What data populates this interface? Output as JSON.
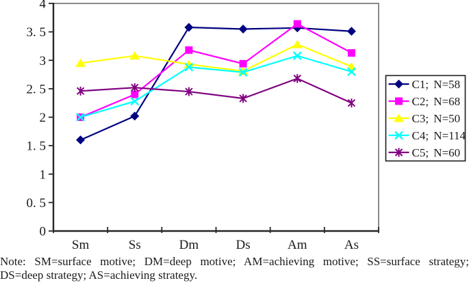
{
  "note": {
    "line1": "Note: SM=surface motive; DM=deep motive; AM=achieving motive; SS=surface strategy;",
    "line2": "DS=deep strategy; AS=achieving strategy."
  },
  "chart_data": {
    "type": "line",
    "title": "",
    "xlabel": "",
    "ylabel": "",
    "grid": false,
    "legend_position": "right",
    "ylim": [
      0,
      4
    ],
    "ytick_step": 0.5,
    "ytick_labels_top_to_bottom": [
      "4",
      "3. 5",
      "3",
      "2. 5",
      "2",
      "1. 5",
      "1",
      "0. 5",
      "0"
    ],
    "categories": [
      "Sm",
      "Ss",
      "Dm",
      "Ds",
      "Am",
      "As"
    ],
    "series": [
      {
        "name": "C1; N=58",
        "color": "#000080",
        "marker": "diamond",
        "values": [
          1.6,
          2.02,
          3.58,
          3.55,
          3.57,
          3.51
        ]
      },
      {
        "name": "C2; N=68",
        "color": "#FF00FF",
        "marker": "square",
        "values": [
          2.0,
          2.4,
          3.18,
          2.94,
          3.64,
          3.13
        ]
      },
      {
        "name": "C3; N=50",
        "color": "#FFFF00",
        "marker": "triangle",
        "values": [
          2.95,
          3.08,
          2.93,
          2.81,
          3.28,
          2.89
        ]
      },
      {
        "name": "C4; N=114",
        "color": "#00FFFF",
        "marker": "x",
        "values": [
          2.0,
          2.28,
          2.88,
          2.79,
          3.08,
          2.8
        ]
      },
      {
        "name": "C5; N=60",
        "color": "#800080",
        "marker": "asterisk",
        "values": [
          2.46,
          2.52,
          2.45,
          2.33,
          2.68,
          2.25
        ]
      }
    ],
    "colors": {
      "axis": "#262626",
      "plot_border": "#8a8a8a",
      "legend_border": "#1a1a1a",
      "background": "#ffffff"
    }
  }
}
